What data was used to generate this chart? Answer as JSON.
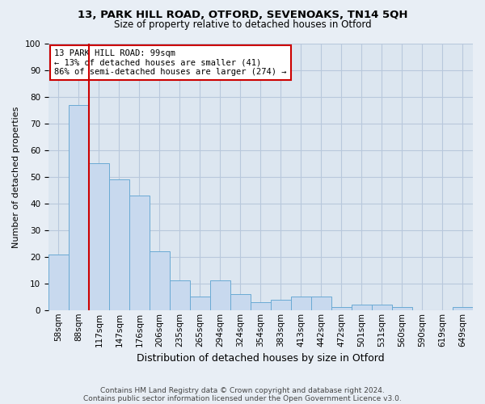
{
  "title1": "13, PARK HILL ROAD, OTFORD, SEVENOAKS, TN14 5QH",
  "title2": "Size of property relative to detached houses in Otford",
  "xlabel": "Distribution of detached houses by size in Otford",
  "ylabel": "Number of detached properties",
  "footnote1": "Contains HM Land Registry data © Crown copyright and database right 2024.",
  "footnote2": "Contains public sector information licensed under the Open Government Licence v3.0.",
  "categories": [
    "58sqm",
    "88sqm",
    "117sqm",
    "147sqm",
    "176sqm",
    "206sqm",
    "235sqm",
    "265sqm",
    "294sqm",
    "324sqm",
    "354sqm",
    "383sqm",
    "413sqm",
    "442sqm",
    "472sqm",
    "501sqm",
    "531sqm",
    "560sqm",
    "590sqm",
    "619sqm",
    "649sqm"
  ],
  "values": [
    21,
    77,
    55,
    49,
    43,
    22,
    11,
    5,
    11,
    6,
    3,
    4,
    5,
    5,
    1,
    2,
    2,
    1,
    0,
    0,
    1
  ],
  "bar_color": "#c8d9ee",
  "bar_edge_color": "#6aaad4",
  "vline_color": "#cc0000",
  "vline_x_index": 1,
  "annotation_text": "13 PARK HILL ROAD: 99sqm\n← 13% of detached houses are smaller (41)\n86% of semi-detached houses are larger (274) →",
  "annotation_box_color": "white",
  "annotation_box_edge": "#cc0000",
  "ylim": [
    0,
    100
  ],
  "background_color": "#e8eef5",
  "plot_bg_color": "#dce6f0",
  "grid_color": "#b8c8dc",
  "title1_fontsize": 9.5,
  "title2_fontsize": 8.5,
  "xlabel_fontsize": 9,
  "ylabel_fontsize": 8,
  "tick_fontsize": 7.5,
  "annotation_fontsize": 7.5,
  "footnote_fontsize": 6.5
}
